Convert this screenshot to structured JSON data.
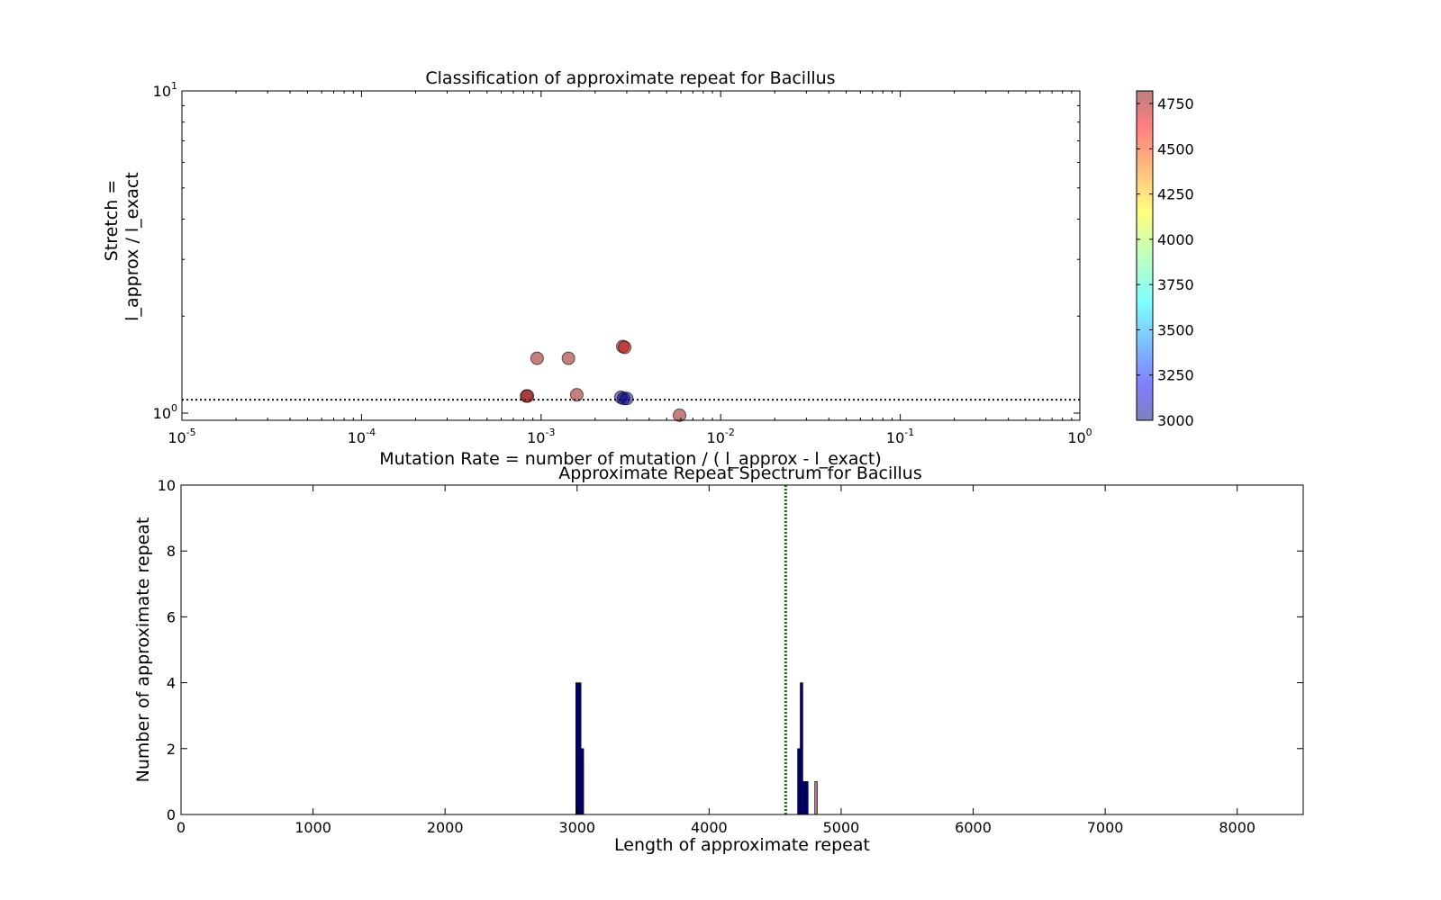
{
  "chart_data": [
    {
      "type": "scatter",
      "title": "Classification of approximate repeat for Bacillus",
      "xlabel": "Mutation Rate = number of mutation / ( l_approx - l_exact)",
      "ylabel_line1": "Stretch =",
      "ylabel_line2": "l_approx / l_exact",
      "xscale": "log",
      "yscale": "log",
      "xlim": [
        1e-05,
        1
      ],
      "ylim": [
        0.95,
        10
      ],
      "x_ticks": [
        {
          "value": 1e-05,
          "base": "10",
          "exp": "-5"
        },
        {
          "value": 0.0001,
          "base": "10",
          "exp": "-4"
        },
        {
          "value": 0.001,
          "base": "10",
          "exp": "-3"
        },
        {
          "value": 0.01,
          "base": "10",
          "exp": "-2"
        },
        {
          "value": 0.1,
          "base": "10",
          "exp": "-1"
        },
        {
          "value": 1,
          "base": "10",
          "exp": "0"
        }
      ],
      "y_ticks": [
        {
          "value": 1,
          "base": "10",
          "exp": "0"
        },
        {
          "value": 10,
          "base": "10",
          "exp": "1"
        }
      ],
      "reference_line": {
        "y": 1.1,
        "style": "dotted"
      },
      "points": [
        {
          "x": 0.00083,
          "y": 1.13,
          "c": 4800
        },
        {
          "x": 0.00084,
          "y": 1.13,
          "c": 4790
        },
        {
          "x": 0.00095,
          "y": 1.48,
          "c": 4800
        },
        {
          "x": 0.00142,
          "y": 1.48,
          "c": 4800
        },
        {
          "x": 0.00158,
          "y": 1.14,
          "c": 4800
        },
        {
          "x": 0.00285,
          "y": 1.61,
          "c": 4810
        },
        {
          "x": 0.00292,
          "y": 1.6,
          "c": 4700
        },
        {
          "x": 0.00278,
          "y": 1.12,
          "c": 3010
        },
        {
          "x": 0.00288,
          "y": 1.11,
          "c": 3000
        },
        {
          "x": 0.003,
          "y": 1.11,
          "c": 3020
        },
        {
          "x": 0.0059,
          "y": 0.985,
          "c": 4790
        }
      ],
      "colorbar": {
        "colormap": "jet",
        "alpha": 0.5,
        "min": 3000,
        "max": 4820,
        "ticks": [
          "3000",
          "3250",
          "3500",
          "3750",
          "4000",
          "4250",
          "4500",
          "4750"
        ]
      },
      "grid": false,
      "legend": "none"
    },
    {
      "type": "bar",
      "title": "Approximate Repeat Spectrum for Bacillus",
      "xlabel": "Length of approximate repeat",
      "ylabel": "Number of approximate repeat",
      "xlim": [
        0,
        8500
      ],
      "ylim": [
        0,
        10
      ],
      "x_ticks": [
        "0",
        "1000",
        "2000",
        "3000",
        "4000",
        "5000",
        "6000",
        "7000",
        "8000"
      ],
      "y_ticks": [
        "0",
        "2",
        "4",
        "6",
        "8",
        "10"
      ],
      "bin_width": 20,
      "bars": [
        {
          "x": 2990,
          "value": 4,
          "color": "#00007f"
        },
        {
          "x": 3010,
          "value": 4,
          "color": "#00007f"
        },
        {
          "x": 3030,
          "value": 2,
          "color": "#00007f"
        },
        {
          "x": 4670,
          "value": 2,
          "color": "#00007f"
        },
        {
          "x": 4690,
          "value": 4,
          "color": "#00007f"
        },
        {
          "x": 4710,
          "value": 1,
          "color": "#00007f"
        },
        {
          "x": 4730,
          "value": 1,
          "color": "#00007f"
        },
        {
          "x": 4800,
          "value": 1,
          "color": "#c07070"
        }
      ],
      "reference_line": {
        "x": 4580,
        "style": "dotted",
        "color": "#007f00"
      },
      "grid": false,
      "legend": "none"
    }
  ]
}
